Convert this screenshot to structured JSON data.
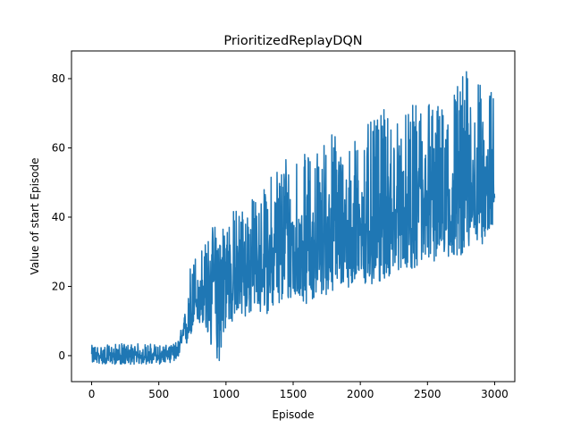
{
  "chart_data": {
    "type": "line",
    "title": "PrioritizedReplayDQN",
    "xlabel": "Episode",
    "ylabel": "Value of start Episode",
    "xlim": [
      -150,
      3150
    ],
    "ylim": [
      -7.5,
      88
    ],
    "xticks": [
      0,
      500,
      1000,
      1500,
      2000,
      2500,
      3000
    ],
    "yticks": [
      0,
      20,
      40,
      60,
      80
    ],
    "grid": false,
    "series_color": "#1f77b4",
    "series": [
      {
        "lower_envelope": {
          "x": [
            0,
            100,
            200,
            300,
            400,
            500,
            550,
            600,
            650,
            700,
            730,
            760,
            800,
            850,
            900,
            950,
            1000,
            1100,
            1200,
            1300,
            1400,
            1500,
            1600,
            1700,
            1800,
            1900,
            2000,
            2100,
            2200,
            2300,
            2400,
            2500,
            2600,
            2700,
            2800,
            2900,
            3000
          ],
          "y": [
            -2,
            -2.5,
            -2.5,
            -2.5,
            -2.5,
            -2.5,
            -2,
            -2,
            -1,
            2,
            5,
            8,
            9,
            5,
            0,
            -2,
            8,
            10,
            12,
            12,
            14,
            16,
            15,
            17,
            18,
            20,
            18,
            20,
            22,
            25,
            25,
            26,
            28,
            28,
            30,
            32,
            35
          ]
        },
        "upper_envelope": {
          "x": [
            0,
            100,
            200,
            300,
            400,
            500,
            550,
            600,
            650,
            700,
            730,
            760,
            800,
            850,
            900,
            950,
            1000,
            1100,
            1200,
            1300,
            1400,
            1500,
            1600,
            1700,
            1800,
            1900,
            2000,
            2100,
            2200,
            2300,
            2400,
            2500,
            2600,
            2700,
            2800,
            2900,
            3000
          ],
          "y": [
            3,
            3,
            3.5,
            3.5,
            3.5,
            3.5,
            3,
            3,
            5,
            14,
            26,
            30,
            32,
            33,
            38,
            40,
            41,
            44,
            46,
            49,
            60,
            62,
            58,
            62,
            67,
            60,
            66,
            68,
            72,
            68,
            73,
            78,
            72,
            80,
            84,
            78,
            77
          ]
        },
        "typical_mean": {
          "x": [
            0,
            500,
            650,
            700,
            800,
            1000,
            1500,
            2000,
            2500,
            3000
          ],
          "y": [
            0,
            0,
            2,
            8,
            18,
            24,
            32,
            37,
            44,
            50
          ]
        }
      }
    ]
  }
}
